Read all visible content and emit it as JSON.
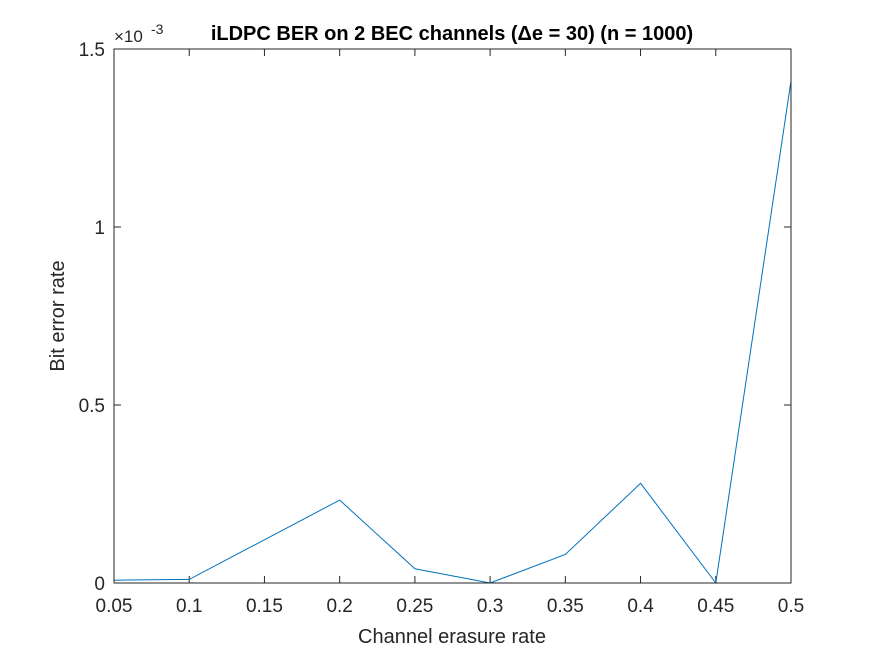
{
  "chart_data": {
    "type": "line",
    "title": "iLDPC BER on 2 BEC channels (Δe = 30) (n = 1000)",
    "xlabel": "Channel erasure rate",
    "ylabel": "Bit error rate",
    "y_exponent_base": "×10",
    "y_exponent_power": "-3",
    "xlim": [
      0.05,
      0.5
    ],
    "ylim": [
      0,
      1.5
    ],
    "x_ticks": [
      0.05,
      0.1,
      0.15,
      0.2,
      0.25,
      0.3,
      0.35,
      0.4,
      0.45,
      0.5
    ],
    "x_tick_labels": [
      "0.05",
      "0.1",
      "0.15",
      "0.2",
      "0.25",
      "0.3",
      "0.35",
      "0.4",
      "0.45",
      "0.5"
    ],
    "y_ticks": [
      0,
      0.5,
      1,
      1.5
    ],
    "y_tick_labels": [
      "0",
      "0.5",
      "1",
      "1.5"
    ],
    "grid": false,
    "line_color": "#0072BD",
    "series": [
      {
        "x": [
          0.05,
          0.1,
          0.2,
          0.25,
          0.3,
          0.35,
          0.4,
          0.45,
          0.5
        ],
        "y": [
          0.008,
          0.01,
          0.233,
          0.04,
          0.0,
          0.08,
          0.28,
          0.0,
          1.41
        ]
      }
    ]
  }
}
